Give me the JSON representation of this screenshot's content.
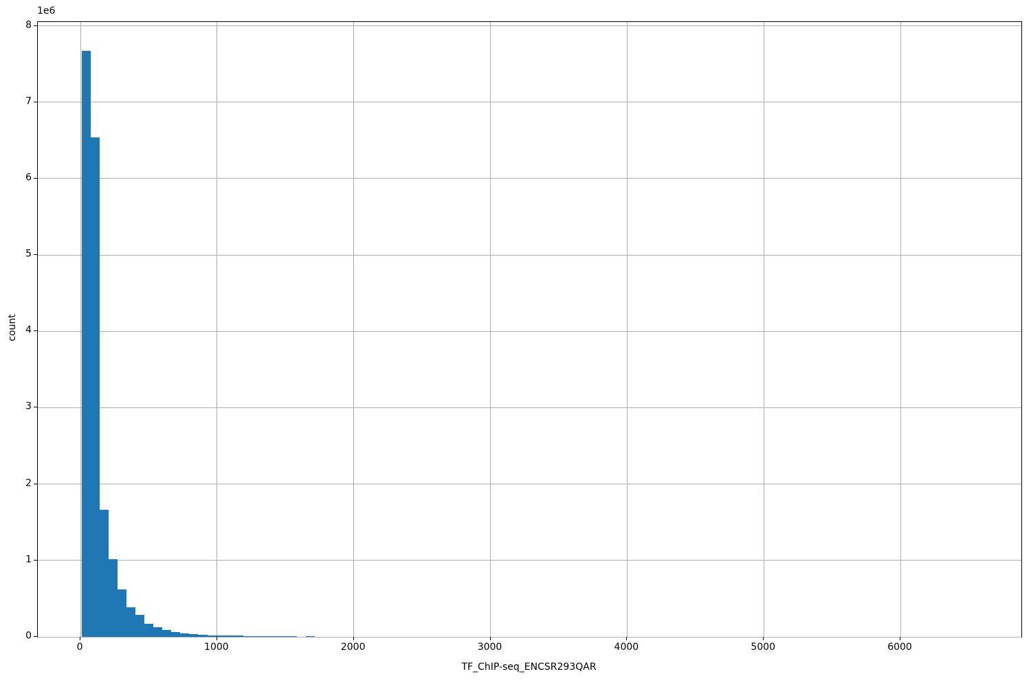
{
  "figure": {
    "background": "#ffffff",
    "frame_color": "#000000"
  },
  "chart_data": {
    "type": "bar",
    "variant": "histogram",
    "title": "",
    "xlabel": "TF_ChIP-seq_ENCSR293QAR",
    "ylabel": "count",
    "y_offset_text": "1e6",
    "bar_color": "#1f77b4",
    "grid": true,
    "grid_color": "#b0b0b0",
    "legend": null,
    "xlim": [
      -312,
      6885
    ],
    "ylim": [
      0,
      8050000
    ],
    "xticks": {
      "values": [
        0,
        1000,
        2000,
        3000,
        4000,
        5000,
        6000
      ],
      "labels": [
        "0",
        "1000",
        "2000",
        "3000",
        "4000",
        "5000",
        "6000"
      ]
    },
    "yticks": {
      "values": [
        0,
        1000000,
        2000000,
        3000000,
        4000000,
        5000000,
        6000000,
        7000000,
        8000000
      ],
      "labels": [
        "0",
        "1",
        "2",
        "3",
        "4",
        "5",
        "6",
        "7",
        "8"
      ]
    },
    "bins": {
      "start": 8,
      "width": 65.7,
      "note": "counts[i] covers x range [start + i*width, start + (i+1)*width]; all later bins up to xlim are zero"
    },
    "counts": [
      7670000,
      6540000,
      1660000,
      1020000,
      620000,
      390000,
      290000,
      175000,
      125000,
      86000,
      61000,
      46000,
      37000,
      27000,
      22000,
      20000,
      18000,
      14000,
      12000,
      10000,
      9000,
      8000,
      6000,
      5000,
      0,
      12000
    ]
  }
}
